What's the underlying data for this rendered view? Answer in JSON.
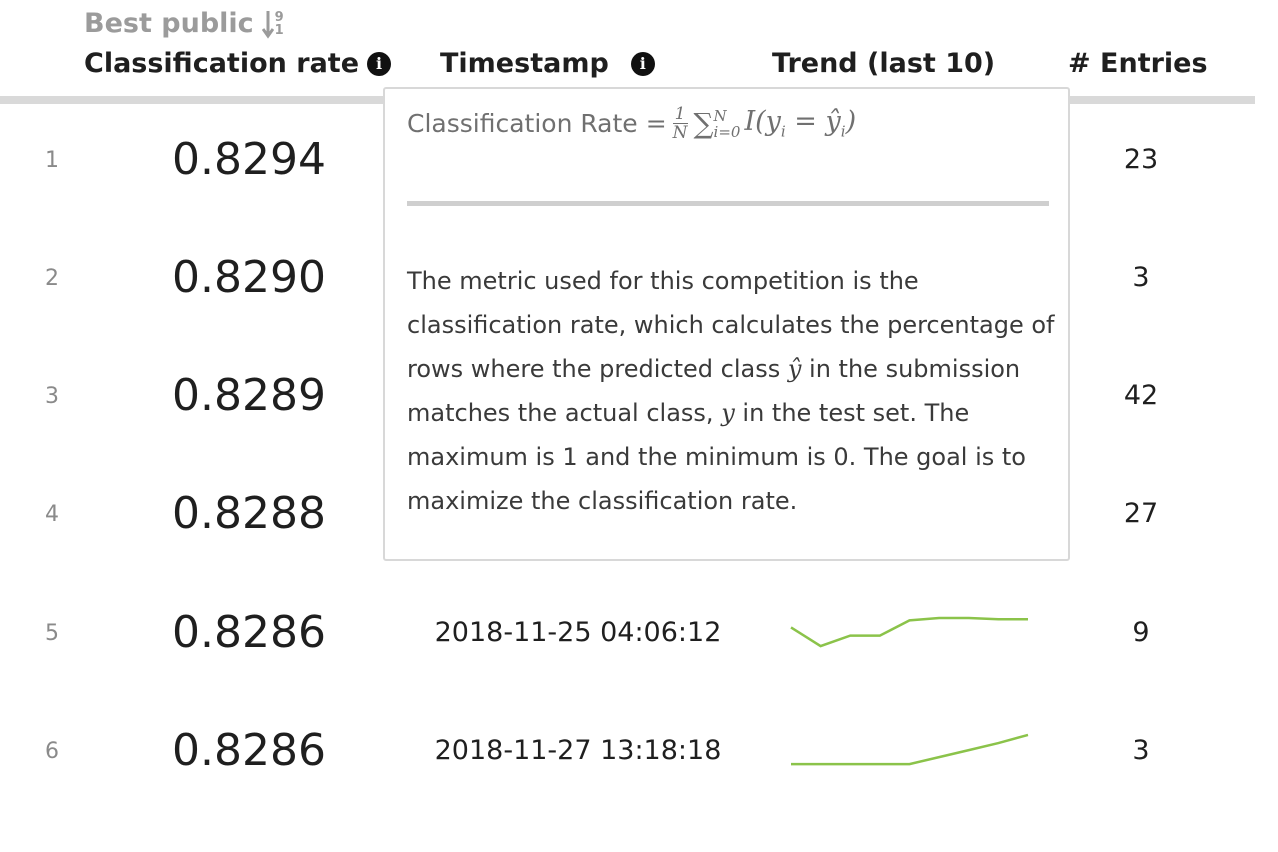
{
  "sort": {
    "caption": "Best public",
    "icon": "sort-numeric-descending-icon",
    "icon_top": "9",
    "icon_bottom": "1"
  },
  "header": {
    "score": "Classification rate",
    "timestamp": "Timestamp",
    "trend": "Trend (last 10)",
    "entries": "# Entries"
  },
  "tooltip": {
    "formula_label": "Classification Rate",
    "formula_math": "∑",
    "body_1": "The metric used for this competition is the",
    "body_2": "classification rate, which calculates the percentage of",
    "body_3a": "rows where the predicted class",
    "body_3m": "ŷ",
    "body_3b": "in the submission",
    "body_4a": "matches the actual class,",
    "body_4m": "y",
    "body_4b": "in the test set. The",
    "body_5": "maximum is 1 and the minimum is 0. The goal is to",
    "body_6": "maximize the classification rate."
  },
  "rows": [
    {
      "rank": "1",
      "score": "0.8294",
      "timestamp": "",
      "entries": "23",
      "trend": []
    },
    {
      "rank": "2",
      "score": "0.8290",
      "timestamp": "",
      "entries": "3",
      "trend": []
    },
    {
      "rank": "3",
      "score": "0.8289",
      "timestamp": "",
      "entries": "42",
      "trend": []
    },
    {
      "rank": "4",
      "score": "0.8288",
      "timestamp": "",
      "entries": "27",
      "trend": []
    },
    {
      "rank": "5",
      "score": "0.8286",
      "timestamp": "2018-11-25 04:06:12",
      "entries": "9",
      "trend": [
        0.8286,
        0.827,
        0.8279,
        0.8279,
        0.8292,
        0.8294,
        0.8294,
        0.8293,
        0.8293
      ]
    },
    {
      "rank": "6",
      "score": "0.8286",
      "timestamp": "2018-11-27 13:18:18",
      "entries": "3",
      "trend": [
        0.827,
        0.827,
        0.827,
        0.827,
        0.827,
        0.8276,
        0.8282,
        0.8288,
        0.8295
      ]
    }
  ],
  "colors": {
    "trend_line": "#8bc34a",
    "header_rule": "#d9d9d9"
  }
}
